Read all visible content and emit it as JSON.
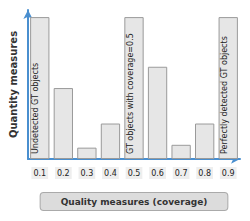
{
  "chart_data": {
    "type": "bar",
    "categories": [
      "0.1",
      "0.2",
      "0.3",
      "0.4",
      "0.5",
      "0.6",
      "0.7",
      "0.8",
      "0.9"
    ],
    "values": [
      10,
      5,
      0.8,
      2.5,
      10,
      6.5,
      1,
      2.5,
      10
    ],
    "color": "#e6e6e6",
    "x_label": "Quality measures (coverage)",
    "y_label": "Quantity measures",
    "ylim": [
      0,
      10.5
    ],
    "tick_labels": "x",
    "grid": false,
    "annotations": [
      {
        "x": "0.1",
        "text": "Undetected GT objects"
      },
      {
        "x": "0.5",
        "text": "GT objects with coverage=0.5"
      },
      {
        "x": "0.9",
        "text": "Perfectly detected GT objects"
      }
    ]
  }
}
